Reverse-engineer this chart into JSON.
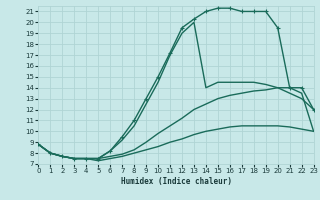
{
  "xlabel": "Humidex (Indice chaleur)",
  "bg_color": "#c8e8e8",
  "grid_color": "#b0d4d4",
  "line_color": "#1a6b5a",
  "xlim": [
    0,
    23
  ],
  "ylim": [
    7,
    21.5
  ],
  "xticks": [
    0,
    1,
    2,
    3,
    4,
    5,
    6,
    7,
    8,
    9,
    10,
    11,
    12,
    13,
    14,
    15,
    16,
    17,
    18,
    19,
    20,
    21,
    22,
    23
  ],
  "yticks": [
    7,
    8,
    9,
    10,
    11,
    12,
    13,
    14,
    15,
    16,
    17,
    18,
    19,
    20,
    21
  ],
  "curves": [
    {
      "x": [
        0,
        1,
        2,
        3,
        4,
        5,
        6,
        7,
        8,
        9,
        10,
        11,
        12,
        13,
        14,
        15,
        16,
        17,
        18,
        19,
        20,
        21,
        22,
        23
      ],
      "y": [
        8.8,
        8.0,
        7.7,
        7.5,
        7.5,
        7.5,
        8.2,
        9.5,
        11.0,
        13.0,
        15.0,
        17.2,
        19.5,
        20.3,
        21.0,
        21.3,
        21.3,
        21.0,
        21.0,
        21.0,
        19.5,
        14.0,
        14.0,
        12.0
      ],
      "marker": true,
      "lw": 1.0
    },
    {
      "x": [
        0,
        1,
        2,
        3,
        4,
        5,
        6,
        7,
        8,
        9,
        10,
        11,
        12,
        13,
        14,
        15,
        16,
        17,
        18,
        19,
        20,
        21,
        22,
        23
      ],
      "y": [
        8.8,
        8.0,
        7.7,
        7.5,
        7.5,
        7.5,
        8.2,
        9.2,
        10.5,
        12.5,
        14.5,
        17.0,
        19.0,
        20.0,
        14.0,
        14.5,
        14.5,
        14.5,
        14.5,
        14.3,
        14.0,
        13.5,
        13.0,
        12.0
      ],
      "marker": false,
      "lw": 1.0
    },
    {
      "x": [
        0,
        1,
        2,
        3,
        4,
        5,
        6,
        7,
        8,
        9,
        10,
        11,
        12,
        13,
        14,
        15,
        16,
        17,
        18,
        19,
        20,
        21,
        22,
        23
      ],
      "y": [
        8.8,
        8.0,
        7.7,
        7.5,
        7.5,
        7.5,
        7.7,
        7.9,
        8.3,
        9.0,
        9.8,
        10.5,
        11.2,
        12.0,
        12.5,
        13.0,
        13.3,
        13.5,
        13.7,
        13.8,
        14.0,
        14.0,
        13.5,
        10.0
      ],
      "marker": false,
      "lw": 1.0
    },
    {
      "x": [
        0,
        1,
        2,
        3,
        4,
        5,
        6,
        7,
        8,
        9,
        10,
        11,
        12,
        13,
        14,
        15,
        16,
        17,
        18,
        19,
        20,
        21,
        22,
        23
      ],
      "y": [
        8.8,
        8.0,
        7.7,
        7.5,
        7.5,
        7.3,
        7.5,
        7.7,
        8.0,
        8.3,
        8.6,
        9.0,
        9.3,
        9.7,
        10.0,
        10.2,
        10.4,
        10.5,
        10.5,
        10.5,
        10.5,
        10.4,
        10.2,
        10.0
      ],
      "marker": false,
      "lw": 1.0
    }
  ]
}
